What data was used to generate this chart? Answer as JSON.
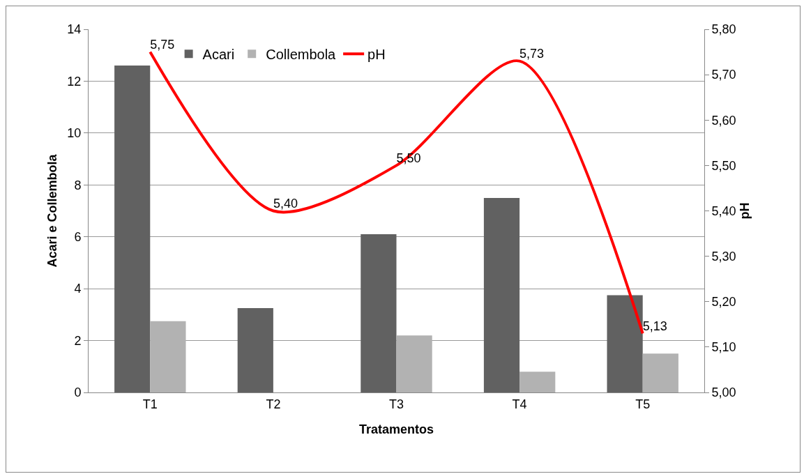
{
  "chart_data": {
    "type": "bar",
    "xlabel": "Tratamentos",
    "ylabel": "Acari e Collembola",
    "y2label": "pH",
    "categories": [
      "T1",
      "T2",
      "T3",
      "T4",
      "T5"
    ],
    "series": [
      {
        "name": "Acari",
        "color": "#616161",
        "values": [
          12.6,
          3.25,
          6.1,
          7.5,
          3.75
        ]
      },
      {
        "name": "Collembola",
        "color": "#b2b2b2",
        "values": [
          2.75,
          0,
          2.2,
          0.8,
          1.5
        ]
      },
      {
        "name": "pH",
        "type": "line",
        "axis": "y2",
        "color": "#ff0000",
        "values": [
          5.75,
          5.4,
          5.5,
          5.73,
          5.13
        ],
        "value_labels": [
          "5,75",
          "5,40",
          "5,50",
          "5,73",
          "5,13"
        ],
        "marker": "none",
        "line_style": "solid"
      }
    ],
    "ylim": [
      0,
      14
    ],
    "yticks": [
      0,
      2,
      4,
      6,
      8,
      10,
      12,
      14
    ],
    "y2lim": [
      5,
      5.8
    ],
    "y2ticks": [
      {
        "value": 5,
        "label": "5,00"
      },
      {
        "value": 5.1,
        "label": "5,10"
      },
      {
        "value": 5.2,
        "label": "5,20"
      },
      {
        "value": 5.3,
        "label": "5,30"
      },
      {
        "value": 5.4,
        "label": "5,40"
      },
      {
        "value": 5.5,
        "label": "5,50"
      },
      {
        "value": 5.6,
        "label": "5,60"
      },
      {
        "value": 5.7,
        "label": "5,70"
      },
      {
        "value": 5.8,
        "label": "5,80"
      }
    ],
    "grid": "y",
    "legend": "top"
  }
}
